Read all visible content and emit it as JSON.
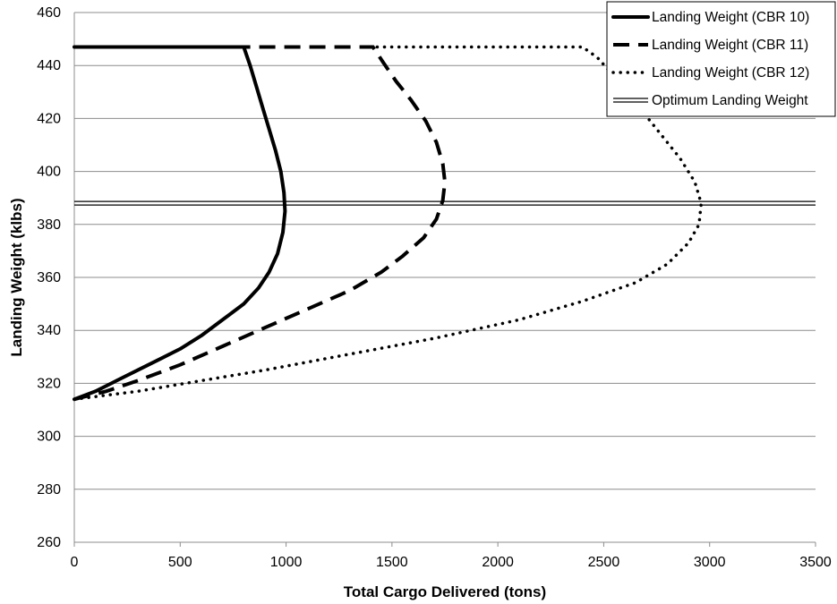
{
  "chart_data": {
    "type": "line",
    "title": "",
    "xlabel": "Total Cargo Delivered (tons)",
    "ylabel": "Landing Weight (klbs)",
    "xlim": [
      0,
      3500
    ],
    "ylim": [
      260,
      460
    ],
    "xticks": [
      0,
      500,
      1000,
      1500,
      2000,
      2500,
      3000,
      3500
    ],
    "yticks": [
      260,
      280,
      300,
      320,
      340,
      360,
      380,
      400,
      420,
      440,
      460
    ],
    "xtick_labels": [
      "0",
      "500",
      "1000",
      "1500",
      "2000",
      "2500",
      "3000",
      "3500"
    ],
    "ytick_labels": [
      "260",
      "280",
      "300",
      "320",
      "340",
      "360",
      "380",
      "400",
      "420",
      "440",
      "460"
    ],
    "grid": "horizontal",
    "legend_position": "top-right",
    "series": [
      {
        "name": "Landing Weight (CBR 10)",
        "style": "solid",
        "color": "#000000",
        "points": [
          [
            0,
            314
          ],
          [
            100,
            317
          ],
          [
            200,
            321
          ],
          [
            300,
            325
          ],
          [
            400,
            329
          ],
          [
            500,
            333
          ],
          [
            600,
            338
          ],
          [
            700,
            344
          ],
          [
            800,
            350
          ],
          [
            870,
            356
          ],
          [
            920,
            362
          ],
          [
            960,
            369
          ],
          [
            985,
            377
          ],
          [
            995,
            385
          ],
          [
            990,
            392
          ],
          [
            975,
            400
          ],
          [
            950,
            408
          ],
          [
            920,
            416
          ],
          [
            890,
            424
          ],
          [
            860,
            432
          ],
          [
            830,
            440
          ],
          [
            800,
            447
          ],
          [
            0,
            447
          ]
        ]
      },
      {
        "name": "Landing Weight (CBR 11)",
        "style": "dashed",
        "color": "#000000",
        "points": [
          [
            0,
            314
          ],
          [
            150,
            317
          ],
          [
            300,
            321
          ],
          [
            500,
            327
          ],
          [
            700,
            334
          ],
          [
            900,
            341
          ],
          [
            1100,
            348
          ],
          [
            1300,
            355
          ],
          [
            1450,
            362
          ],
          [
            1550,
            368
          ],
          [
            1650,
            375
          ],
          [
            1710,
            382
          ],
          [
            1740,
            389
          ],
          [
            1750,
            396
          ],
          [
            1740,
            403
          ],
          [
            1710,
            411
          ],
          [
            1660,
            419
          ],
          [
            1590,
            427
          ],
          [
            1520,
            434
          ],
          [
            1460,
            441
          ],
          [
            1410,
            447
          ],
          [
            800,
            447
          ]
        ]
      },
      {
        "name": "Landing Weight (CBR 12)",
        "style": "dotted",
        "color": "#000000",
        "points": [
          [
            0,
            314
          ],
          [
            300,
            317
          ],
          [
            600,
            321
          ],
          [
            900,
            325
          ],
          [
            1300,
            331
          ],
          [
            1700,
            337
          ],
          [
            2100,
            344
          ],
          [
            2400,
            351
          ],
          [
            2650,
            358
          ],
          [
            2800,
            365
          ],
          [
            2900,
            373
          ],
          [
            2950,
            380
          ],
          [
            2960,
            388
          ],
          [
            2930,
            396
          ],
          [
            2860,
            405
          ],
          [
            2760,
            415
          ],
          [
            2660,
            425
          ],
          [
            2560,
            435
          ],
          [
            2470,
            443
          ],
          [
            2400,
            447
          ],
          [
            1410,
            447
          ]
        ]
      },
      {
        "name": "Optimum Landing Weight",
        "style": "double",
        "color": "#000000",
        "points": [
          [
            0,
            388
          ],
          [
            3500,
            388
          ]
        ]
      }
    ]
  }
}
